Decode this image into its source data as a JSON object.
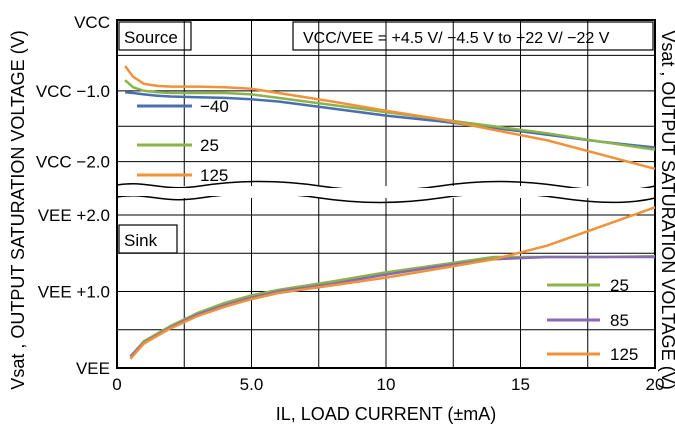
{
  "chart_data": [
    {
      "type": "line",
      "panel": "Source",
      "title": "Source",
      "annotation": "VCC/VEE = +4.5 V/ −4.5 V to +22 V/ −22 V",
      "ylabel_right": "VCC",
      "ytick_labels": [
        "VCC",
        "VCC −1.0",
        "VCC −2.0"
      ],
      "ylim": [
        -2.4,
        0
      ],
      "xlim": [
        0,
        20
      ],
      "grid": true,
      "legend_placement": "left",
      "series": [
        {
          "name": "−40",
          "color": "#4a6fb0",
          "x": [
            0.3,
            0.6,
            1,
            1.5,
            2,
            3,
            4,
            5,
            6,
            8,
            10,
            12,
            14,
            16,
            18,
            20
          ],
          "y": [
            -1.02,
            -1.03,
            -1.05,
            -1.07,
            -1.08,
            -1.09,
            -1.1,
            -1.12,
            -1.15,
            -1.25,
            -1.35,
            -1.43,
            -1.52,
            -1.62,
            -1.72,
            -1.8
          ]
        },
        {
          "name": "25",
          "color": "#8bb34a",
          "x": [
            0.3,
            0.6,
            1,
            1.5,
            2,
            3,
            4,
            5,
            6,
            8,
            10,
            12,
            14,
            16,
            18,
            20
          ],
          "y": [
            -0.85,
            -0.95,
            -1.0,
            -1.02,
            -1.03,
            -1.03,
            -1.03,
            -1.05,
            -1.1,
            -1.2,
            -1.3,
            -1.4,
            -1.5,
            -1.6,
            -1.72,
            -1.83
          ]
        },
        {
          "name": "125",
          "color": "#f0923a",
          "x": [
            0.3,
            0.6,
            1,
            1.5,
            2,
            3,
            4,
            5,
            6,
            8,
            10,
            12,
            14,
            16,
            18,
            20
          ],
          "y": [
            -0.65,
            -0.8,
            -0.9,
            -0.93,
            -0.94,
            -0.94,
            -0.95,
            -0.97,
            -1.03,
            -1.15,
            -1.28,
            -1.4,
            -1.55,
            -1.7,
            -1.9,
            -2.1
          ]
        }
      ]
    },
    {
      "type": "line",
      "panel": "Sink",
      "title": "Sink",
      "ytick_labels": [
        "VEE +2.0",
        "VEE +1.0",
        "VEE"
      ],
      "ylim": [
        0,
        2.3
      ],
      "xlim": [
        0,
        20
      ],
      "grid": true,
      "legend_placement": "right",
      "series": [
        {
          "name": "25",
          "color": "#8bb34a",
          "x": [
            0.5,
            1,
            2,
            3,
            4,
            5,
            6,
            8,
            10,
            12,
            14,
            16,
            18,
            20
          ],
          "y": [
            0.15,
            0.35,
            0.55,
            0.72,
            0.85,
            0.95,
            1.02,
            1.13,
            1.25,
            1.35,
            1.45,
            1.45,
            1.45,
            1.46
          ]
        },
        {
          "name": "85",
          "color": "#8a6ab5",
          "x": [
            0.5,
            1,
            2,
            3,
            4,
            5,
            6,
            8,
            10,
            12,
            14,
            16,
            18,
            20
          ],
          "y": [
            0.15,
            0.33,
            0.53,
            0.7,
            0.82,
            0.92,
            1.0,
            1.1,
            1.22,
            1.33,
            1.42,
            1.45,
            1.45,
            1.45
          ]
        },
        {
          "name": "125",
          "color": "#f0923a",
          "x": [
            0.5,
            1,
            2,
            3,
            4,
            5,
            6,
            8,
            10,
            12,
            14,
            16,
            18,
            20
          ],
          "y": [
            0.12,
            0.32,
            0.52,
            0.68,
            0.8,
            0.9,
            0.98,
            1.08,
            1.18,
            1.3,
            1.42,
            1.6,
            1.85,
            2.1
          ]
        }
      ]
    }
  ],
  "x_axis": {
    "label": "IL, LOAD CURRENT (±mA)",
    "tick_labels": [
      "0",
      "5.0",
      "10",
      "15",
      "20"
    ]
  },
  "y_axis": {
    "label": "Vsat , OUTPUT SATURATION VOLTAGE (V)"
  }
}
